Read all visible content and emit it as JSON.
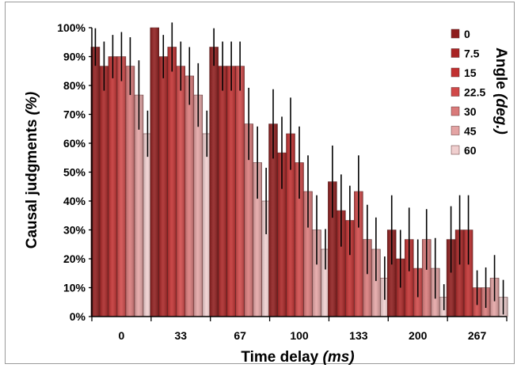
{
  "chart_data": {
    "type": "bar",
    "xlabel": "Time delay",
    "xlabel_unit": "(ms)",
    "ylabel": "Causal judgments",
    "ylabel_unit": "(%)",
    "legend_title": "Angle",
    "legend_title_unit": "(deg.)",
    "legend_position": "top-right",
    "categories": [
      "0",
      "33",
      "67",
      "100",
      "133",
      "200",
      "267"
    ],
    "ylim": [
      0,
      100
    ],
    "yticks": [
      "0%",
      "10%",
      "20%",
      "30%",
      "40%",
      "50%",
      "60%",
      "70%",
      "80%",
      "90%",
      "100%"
    ],
    "grid": false,
    "series": [
      {
        "name": "0",
        "color": "#8e1c1c",
        "values": [
          93.3,
          100,
          93.3,
          66.7,
          46.7,
          30.0,
          26.7
        ],
        "err": [
          6.5,
          0,
          6.5,
          12.0,
          12.5,
          12.0,
          11.5
        ]
      },
      {
        "name": "7.5",
        "color": "#a92424",
        "values": [
          86.7,
          90.0,
          86.7,
          56.7,
          36.7,
          20.0,
          30.0
        ],
        "err": [
          8.5,
          7.5,
          8.5,
          12.5,
          12.5,
          10.0,
          12.0
        ]
      },
      {
        "name": "15",
        "color": "#c13030",
        "values": [
          90.0,
          93.3,
          86.7,
          63.3,
          33.3,
          26.7,
          30.0
        ],
        "err": [
          7.5,
          8.5,
          8.5,
          12.5,
          12.0,
          11.0,
          12.0
        ]
      },
      {
        "name": "22.5",
        "color": "#d04848",
        "values": [
          90.0,
          86.7,
          86.7,
          53.3,
          43.3,
          16.7,
          10.0
        ],
        "err": [
          8.5,
          8.5,
          8.5,
          12.5,
          12.5,
          10.0,
          6.0
        ]
      },
      {
        "name": "30",
        "color": "#d97a7a",
        "values": [
          86.7,
          83.3,
          66.7,
          43.3,
          26.7,
          26.7,
          10.0
        ],
        "err": [
          10.0,
          10.0,
          12.5,
          12.5,
          12.0,
          10.5,
          7.0
        ]
      },
      {
        "name": "45",
        "color": "#e4a4a4",
        "values": [
          76.7,
          76.7,
          53.3,
          30.0,
          23.3,
          16.7,
          13.3
        ],
        "err": [
          12.0,
          11.0,
          12.5,
          12.0,
          11.0,
          10.5,
          8.0
        ]
      },
      {
        "name": "60",
        "color": "#f0cfcf",
        "values": [
          63.3,
          63.3,
          40.0,
          23.3,
          13.3,
          6.7,
          6.7
        ],
        "err": [
          8.0,
          8.0,
          11.5,
          7.0,
          7.5,
          4.5,
          6.0
        ]
      }
    ]
  }
}
